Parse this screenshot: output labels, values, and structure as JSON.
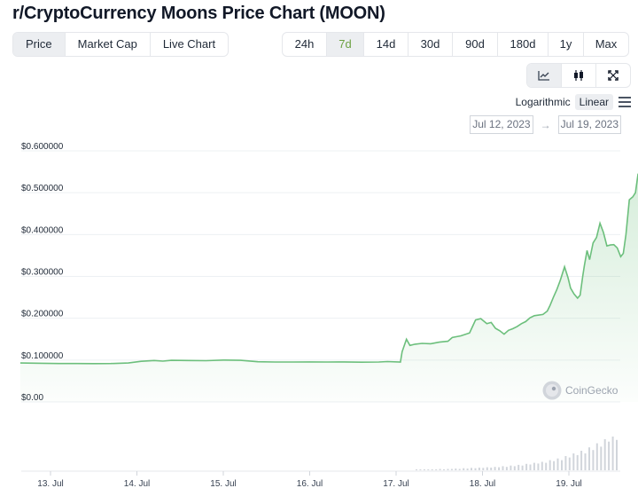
{
  "title": "r/CryptoCurrency Moons Price Chart (MOON)",
  "metric_tabs": [
    "Price",
    "Market Cap",
    "Live Chart"
  ],
  "active_metric": "Price",
  "range_tabs": [
    "24h",
    "7d",
    "14d",
    "30d",
    "90d",
    "180d",
    "1y",
    "Max"
  ],
  "active_range": "7d",
  "view_buttons": [
    "line-chart-icon",
    "candlestick-icon",
    "expand-icon"
  ],
  "scale_options": [
    "Logarithmic",
    "Linear"
  ],
  "active_scale": "Linear",
  "date_from": "Jul 12, 2023",
  "date_arrow": "→",
  "date_to": "Jul 19, 2023",
  "watermark": "CoinGecko",
  "colors": {
    "line": "#6cbf7c",
    "accent_green": "#6ca142",
    "grid": "#edf0f3",
    "volume": "#d1d5db"
  },
  "chart_data": {
    "type": "area",
    "x_tick_labels": [
      "13. Jul",
      "14. Jul",
      "15. Jul",
      "16. Jul",
      "17. Jul",
      "18. Jul",
      "19. Jul"
    ],
    "y_tick_labels": [
      "$0.00",
      "$0.100000",
      "$0.200000",
      "$0.300000",
      "$0.400000",
      "$0.500000",
      "$0.600000"
    ],
    "ylim": [
      0,
      0.6
    ],
    "xlim": [
      12.65,
      19.82
    ],
    "grid": true,
    "points": [
      [
        12.65,
        0.093
      ],
      [
        12.9,
        0.0925
      ],
      [
        13.1,
        0.0918
      ],
      [
        13.3,
        0.0917
      ],
      [
        13.5,
        0.0915
      ],
      [
        13.7,
        0.0917
      ],
      [
        13.9,
        0.093
      ],
      [
        14.05,
        0.097
      ],
      [
        14.2,
        0.099
      ],
      [
        14.3,
        0.0975
      ],
      [
        14.4,
        0.0995
      ],
      [
        14.6,
        0.099
      ],
      [
        14.8,
        0.0985
      ],
      [
        15.0,
        0.1
      ],
      [
        15.2,
        0.0995
      ],
      [
        15.4,
        0.096
      ],
      [
        15.6,
        0.0955
      ],
      [
        15.8,
        0.0955
      ],
      [
        16.0,
        0.0957
      ],
      [
        16.2,
        0.0955
      ],
      [
        16.4,
        0.0956
      ],
      [
        16.6,
        0.095
      ],
      [
        16.8,
        0.0955
      ],
      [
        16.9,
        0.0965
      ],
      [
        17.05,
        0.0955
      ],
      [
        17.07,
        0.12
      ],
      [
        17.12,
        0.15
      ],
      [
        17.16,
        0.135
      ],
      [
        17.22,
        0.138
      ],
      [
        17.3,
        0.14
      ],
      [
        17.4,
        0.139
      ],
      [
        17.5,
        0.143
      ],
      [
        17.6,
        0.145
      ],
      [
        17.65,
        0.154
      ],
      [
        17.75,
        0.158
      ],
      [
        17.85,
        0.165
      ],
      [
        17.88,
        0.178
      ],
      [
        17.92,
        0.196
      ],
      [
        17.98,
        0.199
      ],
      [
        18.05,
        0.187
      ],
      [
        18.1,
        0.19
      ],
      [
        18.15,
        0.176
      ],
      [
        18.2,
        0.17
      ],
      [
        18.25,
        0.162
      ],
      [
        18.3,
        0.171
      ],
      [
        18.35,
        0.175
      ],
      [
        18.4,
        0.18
      ],
      [
        18.45,
        0.187
      ],
      [
        18.5,
        0.192
      ],
      [
        18.55,
        0.201
      ],
      [
        18.6,
        0.206
      ],
      [
        18.7,
        0.209
      ],
      [
        18.75,
        0.217
      ],
      [
        18.78,
        0.23
      ],
      [
        18.82,
        0.25
      ],
      [
        18.86,
        0.268
      ],
      [
        18.9,
        0.29
      ],
      [
        18.95,
        0.323
      ],
      [
        18.99,
        0.297
      ],
      [
        19.02,
        0.272
      ],
      [
        19.06,
        0.258
      ],
      [
        19.1,
        0.248
      ],
      [
        19.13,
        0.255
      ],
      [
        19.16,
        0.3
      ],
      [
        19.18,
        0.326
      ],
      [
        19.21,
        0.362
      ],
      [
        19.24,
        0.34
      ],
      [
        19.28,
        0.38
      ],
      [
        19.32,
        0.393
      ],
      [
        19.36,
        0.427
      ],
      [
        19.4,
        0.405
      ],
      [
        19.44,
        0.373
      ],
      [
        19.48,
        0.375
      ],
      [
        19.52,
        0.376
      ],
      [
        19.56,
        0.368
      ],
      [
        19.6,
        0.347
      ],
      [
        19.63,
        0.355
      ],
      [
        19.66,
        0.4
      ],
      [
        19.7,
        0.483
      ],
      [
        19.74,
        0.49
      ],
      [
        19.77,
        0.5
      ],
      [
        19.8,
        0.544
      ],
      [
        19.82,
        0.548
      ]
    ],
    "volume": [
      0.02,
      0.02,
      0.03,
      0.02,
      0.03,
      0.03,
      0.04,
      0.03,
      0.04,
      0.04,
      0.05,
      0.04,
      0.06,
      0.05,
      0.07,
      0.06,
      0.08,
      0.07,
      0.09,
      0.08,
      0.1,
      0.09,
      0.12,
      0.1,
      0.14,
      0.12,
      0.16,
      0.14,
      0.19,
      0.17,
      0.22,
      0.2,
      0.25,
      0.22,
      0.3,
      0.27,
      0.35,
      0.3,
      0.42,
      0.38,
      0.5,
      0.45,
      0.58,
      0.5,
      0.68,
      0.6,
      0.8,
      0.7,
      0.92,
      0.85,
      1.0,
      0.9
    ]
  }
}
